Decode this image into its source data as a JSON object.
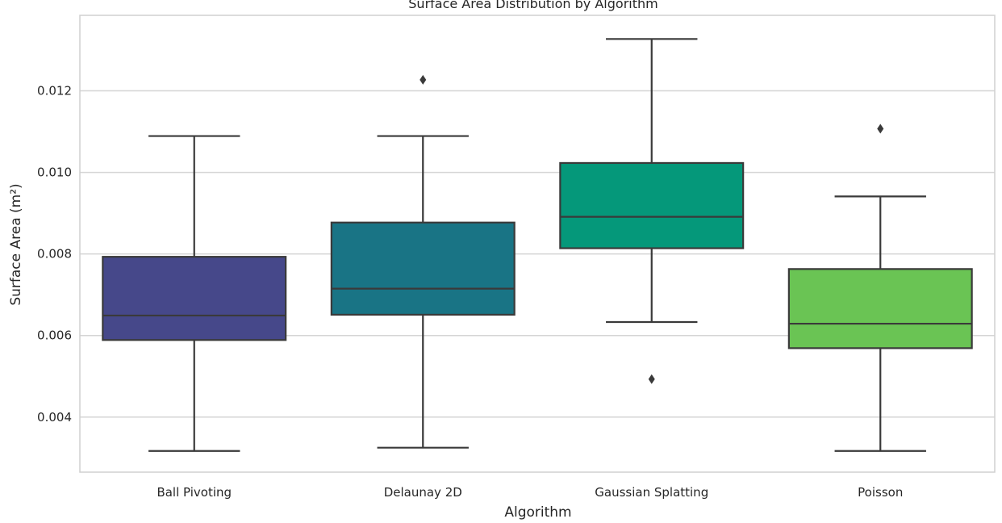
{
  "chart_data": {
    "type": "box",
    "title": "Surface Area Distribution by Algorithm",
    "xlabel": "Algorithm",
    "ylabel": "Surface Area (m²)",
    "ylim": [
      0.00265,
      0.01385
    ],
    "yticks": [
      0.004,
      0.006,
      0.008,
      0.01,
      0.012
    ],
    "ytick_labels": [
      "0.004",
      "0.006",
      "0.008",
      "0.010",
      "0.012"
    ],
    "grid": "horizontal",
    "categories": [
      "Ball Pivoting",
      "Delaunay 2D",
      "Gaussian Splatting",
      "Poisson"
    ],
    "series": [
      {
        "category": "Ball Pivoting",
        "color": "#46488a",
        "whisker_low": 0.00317,
        "q1": 0.00589,
        "median": 0.00649,
        "q3": 0.00793,
        "whisker_high": 0.01089,
        "outliers": []
      },
      {
        "category": "Delaunay 2D",
        "color": "#197485",
        "whisker_low": 0.00325,
        "q1": 0.00651,
        "median": 0.00715,
        "q3": 0.00877,
        "whisker_high": 0.01089,
        "outliers": [
          0.01227
        ]
      },
      {
        "category": "Gaussian Splatting",
        "color": "#05987a",
        "whisker_low": 0.00633,
        "q1": 0.00814,
        "median": 0.00891,
        "q3": 0.01023,
        "whisker_high": 0.01327,
        "outliers": [
          0.00493
        ]
      },
      {
        "category": "Poisson",
        "color": "#6ac454",
        "whisker_low": 0.00317,
        "q1": 0.00569,
        "median": 0.00629,
        "q3": 0.00763,
        "whisker_high": 0.00941,
        "outliers": [
          0.01107
        ]
      }
    ]
  }
}
